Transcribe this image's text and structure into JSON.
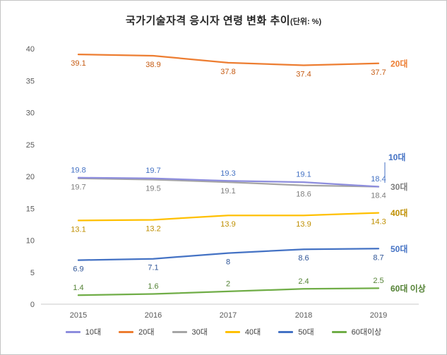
{
  "chart_data": {
    "type": "line",
    "title_main": "국가기술자격 응시자 연령 변화 추이",
    "title_suffix": "(단위: %)",
    "x": [
      "2015",
      "2016",
      "2017",
      "2018",
      "2019"
    ],
    "y_ticks": [
      0,
      5,
      10,
      15,
      20,
      25,
      30,
      35,
      40
    ],
    "ylim": [
      0,
      40
    ],
    "grid": false,
    "legend_position": "bottom",
    "series": [
      {
        "name": "10대",
        "end_label": "10대",
        "values": [
          19.8,
          19.7,
          19.3,
          19.1,
          18.4
        ],
        "color": "#8d8ddd",
        "label_color": "#4472c4",
        "end_label_color": "#4472c4",
        "data_label_position": "above",
        "end_label_callout": true
      },
      {
        "name": "20대",
        "end_label": "20대",
        "values": [
          39.1,
          38.9,
          37.8,
          37.4,
          37.7
        ],
        "color": "#ed7d31",
        "label_color": "#c55a11",
        "end_label_color": "#ed7d31",
        "data_label_position": "below"
      },
      {
        "name": "30대",
        "end_label": "30대",
        "values": [
          19.7,
          19.5,
          19.1,
          18.6,
          18.4
        ],
        "color": "#a5a5a5",
        "label_color": "#7f7f7f",
        "end_label_color": "#7f7f7f",
        "data_label_position": "below"
      },
      {
        "name": "40대",
        "end_label": "40대",
        "values": [
          13.1,
          13.2,
          13.9,
          13.9,
          14.3
        ],
        "color": "#ffc000",
        "label_color": "#bf8f00",
        "end_label_color": "#bf8f00",
        "data_label_position": "below"
      },
      {
        "name": "50대",
        "end_label": "50대",
        "values": [
          6.9,
          7.1,
          8,
          8.6,
          8.7
        ],
        "color": "#4472c4",
        "label_color": "#2f5597",
        "end_label_color": "#4472c4",
        "data_label_position": "below"
      },
      {
        "name": "60대이상",
        "end_label": "60대 이상",
        "values": [
          1.4,
          1.6,
          2,
          2.4,
          2.5
        ],
        "color": "#70ad47",
        "label_color": "#548235",
        "end_label_color": "#548235",
        "data_label_position": "above"
      }
    ]
  }
}
